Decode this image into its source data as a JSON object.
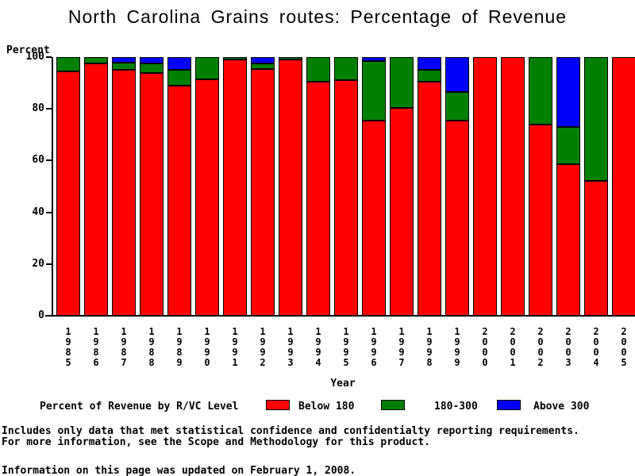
{
  "chart_data": {
    "type": "bar",
    "stacked": true,
    "title": "North Carolina Grains routes: Percentage of Revenue",
    "xlabel": "Year",
    "ylabel": "Percent",
    "ylim": [
      0,
      100
    ],
    "yticks": [
      0,
      20,
      40,
      60,
      80,
      100
    ],
    "grid": false,
    "legend_position": "bottom",
    "categories": [
      "1985",
      "1986",
      "1987",
      "1988",
      "1989",
      "1990",
      "1991",
      "1992",
      "1993",
      "1994",
      "1995",
      "1996",
      "1997",
      "1998",
      "1999",
      "2000",
      "2001",
      "2002",
      "2003",
      "2004",
      "2005"
    ],
    "series": [
      {
        "name": "Below 180",
        "color": "#ff0000",
        "values": [
          94.5,
          97.5,
          95,
          94,
          89,
          91.5,
          99,
          95.5,
          99,
          90.5,
          91,
          75.5,
          80.5,
          90.5,
          75.5,
          100,
          100,
          74,
          58.5,
          52,
          100
        ]
      },
      {
        "name": "180-300",
        "color": "#008000",
        "values": [
          5.5,
          2.5,
          3,
          3.5,
          6,
          8.5,
          1,
          2,
          1,
          9.5,
          9,
          23,
          19.5,
          4.5,
          11,
          0,
          0,
          26,
          14.5,
          48,
          0
        ]
      },
      {
        "name": "Above 300",
        "color": "#0000ff",
        "values": [
          0,
          0,
          2,
          2.5,
          5,
          0,
          0,
          2.5,
          0,
          0,
          0,
          1.5,
          0,
          5,
          13.5,
          0,
          0,
          0,
          27,
          0,
          0
        ]
      }
    ]
  },
  "legend": {
    "title": "Percent of Revenue by R/VC Level",
    "items": [
      {
        "label": "Below 180",
        "color": "#ff0000"
      },
      {
        "label": "180-300",
        "color": "#008000"
      },
      {
        "label": "Above 300",
        "color": "#0000ff"
      }
    ]
  },
  "footer": {
    "lines": [
      "Includes only data that met statistical confidence and confidentialty reporting requirements.",
      "For more information, see the Scope and Methodology for this product.",
      "Information on this page was updated on February 1, 2008."
    ]
  }
}
